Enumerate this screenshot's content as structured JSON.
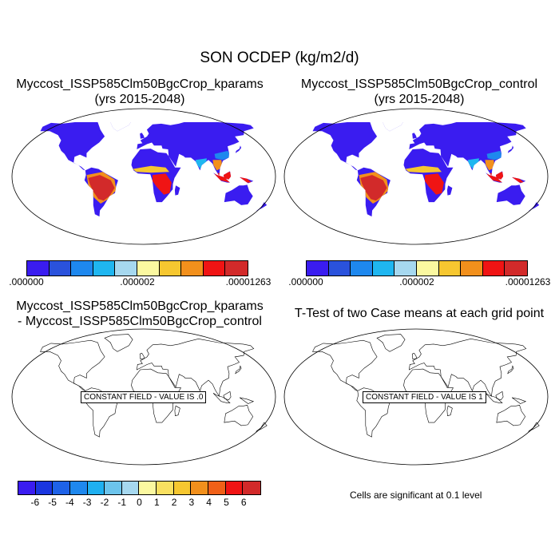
{
  "figure": {
    "title": "SON OCDEP (kg/m2/d)"
  },
  "panels": {
    "top_left": {
      "title_line1": "Myccost_ISSP585Clm50BgcCrop_kparams",
      "title_line2": "(yrs 2015-2048)"
    },
    "top_right": {
      "title_line1": "Myccost_ISSP585Clm50BgcCrop_control",
      "title_line2": "(yrs 2015-2048)"
    },
    "bottom_left": {
      "title_line1": "Myccost_ISSP585Clm50BgcCrop_kparams",
      "title_line2": "- Myccost_ISSP585Clm50BgcCrop_control",
      "constant_label": "CONSTANT FIELD - VALUE IS .0"
    },
    "bottom_right": {
      "title_line1": "T-Test of two Case means at each grid point",
      "constant_label": "CONSTANT FIELD - VALUE IS 1",
      "note": "Cells are significant at 0.1 level"
    }
  },
  "colorbars": {
    "field": {
      "colors": [
        "#3a1cf0",
        "#2a52dc",
        "#1e88ee",
        "#1fb6f0",
        "#a6d8ef",
        "#fbf8a0",
        "#f6c730",
        "#f2901c",
        "#f01414",
        "#d22a2a"
      ],
      "tick_labels": [
        ".000000",
        ".000002",
        ".00001263"
      ]
    },
    "difference": {
      "colors": [
        "#3a1cf0",
        "#1a36e0",
        "#1e62e8",
        "#1e88ee",
        "#1fb0f0",
        "#6cc4ec",
        "#a6d8ef",
        "#fbf8a0",
        "#f9e060",
        "#f6c730",
        "#f2901c",
        "#f06018",
        "#f01414",
        "#d22a2a"
      ],
      "tick_labels": [
        "-6",
        "-5",
        "-4",
        "-3",
        "-2",
        "-1",
        "0",
        "1",
        "2",
        "3",
        "4",
        "5",
        "6"
      ]
    }
  }
}
